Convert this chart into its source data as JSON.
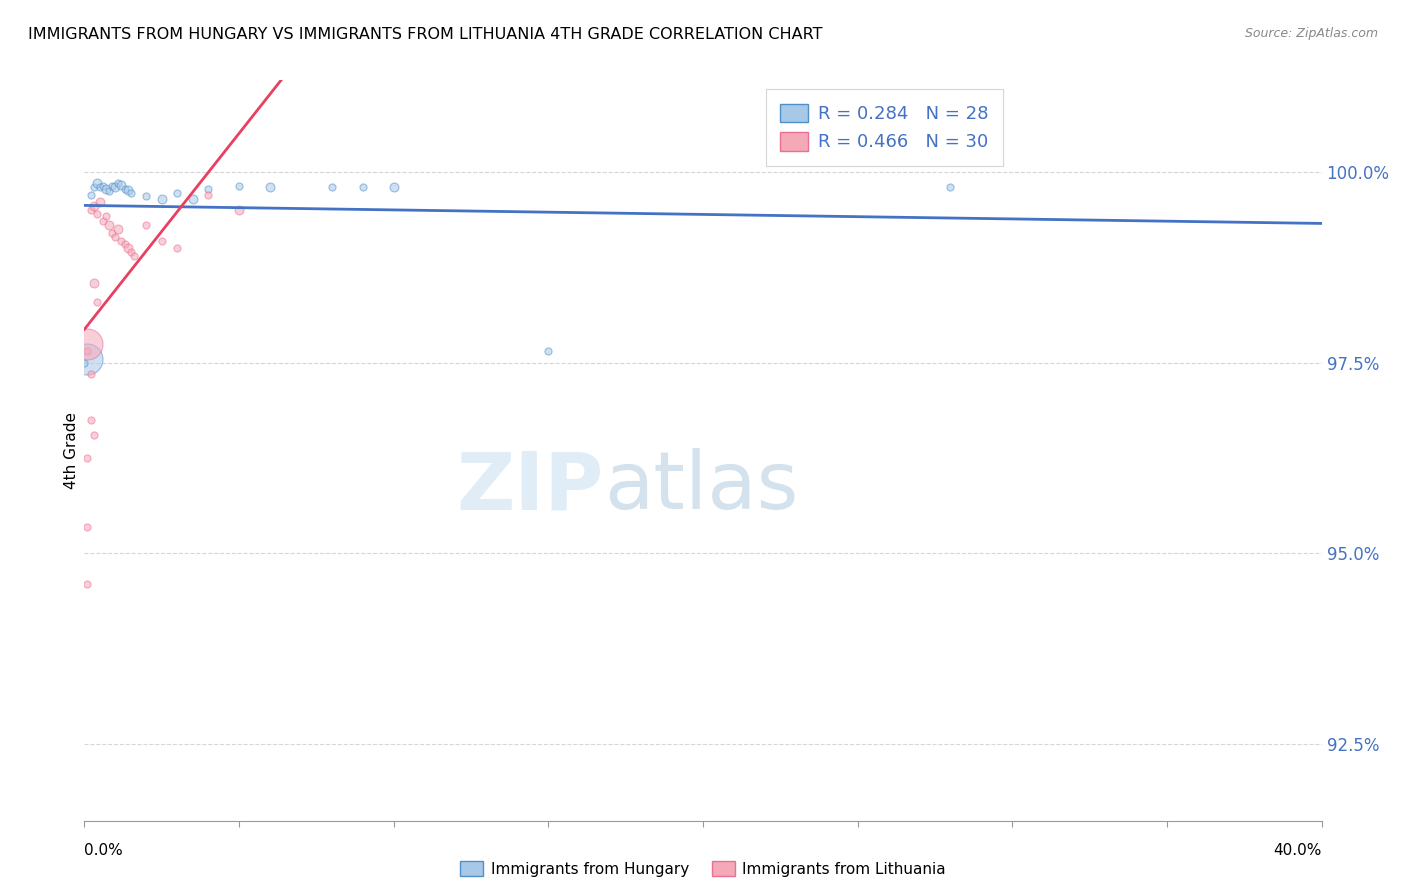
{
  "title": "IMMIGRANTS FROM HUNGARY VS IMMIGRANTS FROM LITHUANIA 4TH GRADE CORRELATION CHART",
  "source": "Source: ZipAtlas.com",
  "ylabel_label": "4th Grade",
  "watermark_zip": "ZIP",
  "watermark_atlas": "atlas",
  "blue_color": "#a8c8e8",
  "pink_color": "#f4a8b8",
  "blue_edge_color": "#5090c8",
  "pink_edge_color": "#e87090",
  "blue_line_color": "#4472c4",
  "pink_line_color": "#e84060",
  "background_color": "#ffffff",
  "grid_color": "#cccccc",
  "right_axis_color": "#4472c4",
  "legend_label_blue": "R = 0.284   N = 28",
  "legend_label_pink": "R = 0.466   N = 30",
  "bottom_label_blue": "Immigrants from Hungary",
  "bottom_label_pink": "Immigrants from Lithuania",
  "blue_points": [
    [
      0.002,
      99.7,
      8
    ],
    [
      0.003,
      99.8,
      8
    ],
    [
      0.004,
      99.85,
      10
    ],
    [
      0.005,
      99.8,
      8
    ],
    [
      0.006,
      99.82,
      8
    ],
    [
      0.007,
      99.78,
      10
    ],
    [
      0.008,
      99.75,
      8
    ],
    [
      0.009,
      99.82,
      8
    ],
    [
      0.01,
      99.8,
      10
    ],
    [
      0.011,
      99.85,
      8
    ],
    [
      0.012,
      99.83,
      10
    ],
    [
      0.013,
      99.78,
      8
    ],
    [
      0.014,
      99.76,
      10
    ],
    [
      0.015,
      99.72,
      8
    ],
    [
      0.02,
      99.68,
      8
    ],
    [
      0.025,
      99.65,
      10
    ],
    [
      0.03,
      99.72,
      8
    ],
    [
      0.035,
      99.65,
      10
    ],
    [
      0.04,
      99.78,
      8
    ],
    [
      0.05,
      99.82,
      8
    ],
    [
      0.06,
      99.8,
      10
    ],
    [
      0.08,
      99.8,
      8
    ],
    [
      0.09,
      99.8,
      8
    ],
    [
      0.1,
      99.8,
      10
    ],
    [
      0.001,
      97.55,
      35
    ],
    [
      0.15,
      97.65,
      8
    ],
    [
      0.28,
      99.8,
      8
    ],
    [
      0.0,
      97.5,
      8
    ]
  ],
  "pink_points": [
    [
      0.002,
      99.5,
      8
    ],
    [
      0.003,
      99.55,
      10
    ],
    [
      0.004,
      99.45,
      8
    ],
    [
      0.005,
      99.6,
      10
    ],
    [
      0.006,
      99.35,
      8
    ],
    [
      0.007,
      99.42,
      8
    ],
    [
      0.008,
      99.3,
      10
    ],
    [
      0.009,
      99.2,
      8
    ],
    [
      0.01,
      99.15,
      8
    ],
    [
      0.011,
      99.25,
      10
    ],
    [
      0.012,
      99.1,
      8
    ],
    [
      0.013,
      99.05,
      8
    ],
    [
      0.014,
      99.0,
      10
    ],
    [
      0.015,
      98.95,
      8
    ],
    [
      0.016,
      98.9,
      8
    ],
    [
      0.02,
      99.3,
      8
    ],
    [
      0.025,
      99.1,
      8
    ],
    [
      0.03,
      99.0,
      8
    ],
    [
      0.04,
      99.7,
      8
    ],
    [
      0.05,
      99.5,
      10
    ],
    [
      0.001,
      97.65,
      8
    ],
    [
      0.002,
      97.35,
      8
    ],
    [
      0.002,
      96.75,
      8
    ],
    [
      0.001,
      97.75,
      35
    ],
    [
      0.003,
      98.55,
      10
    ],
    [
      0.004,
      98.3,
      8
    ],
    [
      0.001,
      96.25,
      8
    ],
    [
      0.003,
      96.55,
      8
    ],
    [
      0.001,
      95.35,
      8
    ],
    [
      0.001,
      94.6,
      8
    ]
  ],
  "xlim": [
    0.0,
    0.4
  ],
  "ylim": [
    91.5,
    101.2
  ],
  "yticks": [
    100.0,
    97.5,
    95.0,
    92.5
  ],
  "xticks": [
    0.0,
    0.05,
    0.1,
    0.15,
    0.2,
    0.25,
    0.3,
    0.35,
    0.4
  ]
}
